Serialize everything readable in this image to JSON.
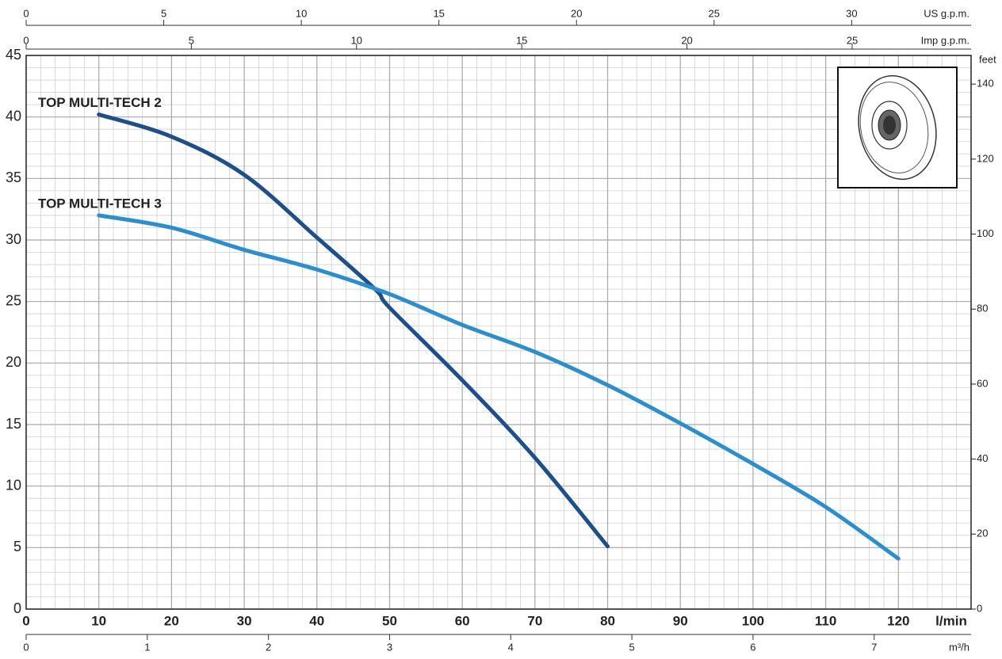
{
  "chart_data": {
    "type": "line",
    "x_label": "l/min",
    "xlim": [
      0,
      130
    ],
    "xticks": [
      0,
      10,
      20,
      30,
      40,
      50,
      60,
      70,
      80,
      90,
      100,
      110,
      120
    ],
    "ylim": [
      0,
      45
    ],
    "yticks": [
      0,
      5,
      10,
      15,
      20,
      25,
      30,
      35,
      40,
      45
    ],
    "y2_label": "feet",
    "y2lim": [
      0,
      147.64
    ],
    "y2ticks": [
      0,
      20,
      40,
      60,
      80,
      100,
      120,
      140
    ],
    "grid": true,
    "top_axes": [
      {
        "label": "US g.p.m.",
        "lim": [
          0,
          34.34
        ],
        "ticks": [
          0,
          5,
          10,
          15,
          20,
          25,
          30
        ]
      },
      {
        "label": "Imp g.p.m.",
        "lim": [
          0,
          28.6
        ],
        "ticks": [
          0,
          5,
          10,
          15,
          20,
          25
        ]
      }
    ],
    "bottom_axis": {
      "label": "m³/h",
      "lim": [
        0,
        7.8
      ],
      "ticks": [
        0,
        1,
        2,
        3,
        4,
        5,
        6,
        7
      ]
    },
    "series": [
      {
        "name": "TOP MULTI-TECH 2",
        "color": "#1d4f8a",
        "x": [
          10,
          20,
          30,
          40,
          48,
          50,
          60,
          70,
          80
        ],
        "values": [
          40.2,
          38.4,
          35.3,
          30.2,
          26,
          24.5,
          18.6,
          12.3,
          5.1
        ]
      },
      {
        "name": "TOP MULTI-TECH 3",
        "color": "#2a8fd1",
        "x": [
          10,
          20,
          30,
          40,
          50,
          60,
          70,
          80,
          90,
          100,
          110,
          120
        ],
        "values": [
          32,
          31,
          29.2,
          27.6,
          25.6,
          23.1,
          20.9,
          18.2,
          15.1,
          11.8,
          8.3,
          4.1
        ]
      }
    ]
  }
}
